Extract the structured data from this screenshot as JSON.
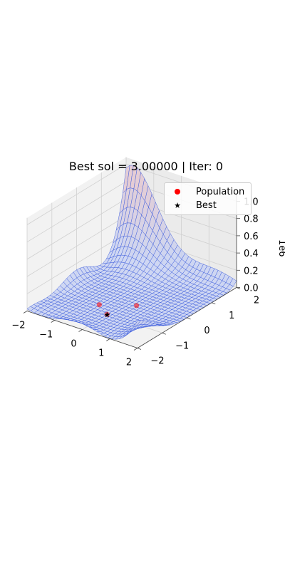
{
  "chart_data": {
    "type": "surface3d",
    "title": "Best sol = 3.00000 | Iter: 0",
    "xlabel": "",
    "ylabel": "",
    "zlabel_partial": "1e6",
    "x_ticks": [
      "−2",
      "−1",
      "0",
      "1",
      "2"
    ],
    "y_ticks": [
      "−2",
      "−1",
      "0",
      "1",
      "2"
    ],
    "z_ticks": [
      "0.0",
      "0.2",
      "0.4",
      "0.6",
      "0.8",
      "1.0"
    ],
    "xlim": [
      -2,
      2
    ],
    "ylim": [
      -2,
      2
    ],
    "zlim": [
      0,
      1.08
    ],
    "legend": {
      "placement": "top-right",
      "entries": [
        {
          "label": "Population",
          "marker": "circle",
          "color": "#ff0000"
        },
        {
          "label": "Best",
          "marker": "star",
          "color": "#000000"
        }
      ]
    },
    "surface": {
      "function": "goldstein-price",
      "z_scale": 1000000,
      "face_color": "#c9d3f2",
      "peak_color": "#e8c6cc",
      "edge_color": "#3b5bdb",
      "grid_resolution": 30
    },
    "population": [
      {
        "x": -0.55,
        "y": -0.7,
        "z": 0.0
      },
      {
        "x": 0.0,
        "y": -1.0,
        "z": 0.0
      },
      {
        "x": 0.35,
        "y": -0.2,
        "z": 0.0
      }
    ],
    "best": {
      "x": 0.0,
      "y": -1.0,
      "z": 0.0,
      "value": 3.0,
      "iteration": 0
    }
  }
}
